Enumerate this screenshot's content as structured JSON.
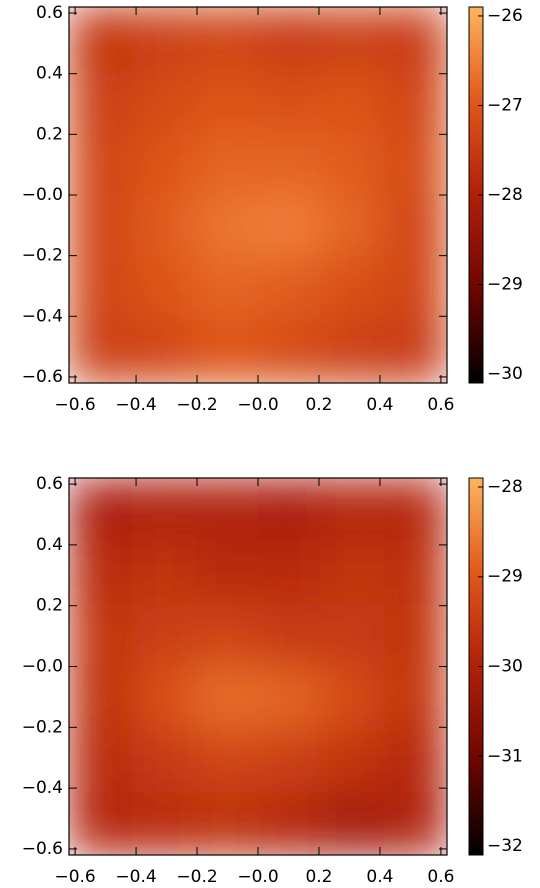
{
  "chart_data": [
    {
      "type": "heatmap",
      "xlim": [
        -0.62,
        0.62
      ],
      "ylim": [
        -0.62,
        0.62
      ],
      "xticks": [
        {
          "value": -0.6,
          "label": "−0.6"
        },
        {
          "value": -0.4,
          "label": "−0.4"
        },
        {
          "value": -0.2,
          "label": "−0.2"
        },
        {
          "value": 0,
          "label": "−0.0"
        },
        0.2,
        0.4,
        0.6
      ],
      "yticks": [
        {
          "value": -0.6,
          "label": "−0.6"
        },
        {
          "value": -0.4,
          "label": "−0.4"
        },
        {
          "value": -0.2,
          "label": "−0.2"
        },
        {
          "value": 0,
          "label": "−0.0"
        },
        0.2,
        0.4,
        0.6
      ],
      "clim": [
        -30.1,
        -25.9
      ],
      "cticks": [
        {
          "value": -30,
          "label": "−30"
        },
        {
          "value": -29,
          "label": "−29"
        },
        {
          "value": -28,
          "label": "−28"
        },
        {
          "value": -27,
          "label": "−27"
        },
        {
          "value": -26,
          "label": "−26"
        }
      ],
      "colormap": [
        "#000000",
        "#6e0500",
        "#b0200a",
        "#e0581a",
        "#ffb45e"
      ],
      "z": [
        [
          -27.6,
          -27.4,
          -27.3,
          -27.5,
          -27.4,
          -27.5
        ],
        [
          -27.4,
          -27.2,
          -27.0,
          -27.1,
          -27.0,
          -27.3
        ],
        [
          -27.3,
          -27.0,
          -26.8,
          -26.8,
          -26.9,
          -27.2
        ],
        [
          -27.3,
          -26.9,
          -26.6,
          -26.5,
          -26.8,
          -27.3
        ],
        [
          -27.3,
          -27.0,
          -26.8,
          -26.9,
          -27.1,
          -27.3
        ],
        [
          -27.4,
          -27.3,
          -27.0,
          -27.2,
          -27.4,
          -27.5
        ]
      ]
    },
    {
      "type": "heatmap",
      "xlim": [
        -0.62,
        0.62
      ],
      "ylim": [
        -0.62,
        0.62
      ],
      "xticks": [
        {
          "value": -0.6,
          "label": "−0.6"
        },
        {
          "value": -0.4,
          "label": "−0.4"
        },
        {
          "value": -0.2,
          "label": "−0.2"
        },
        {
          "value": 0,
          "label": "−0.0"
        },
        0.2,
        0.4,
        0.6
      ],
      "yticks": [
        {
          "value": -0.6,
          "label": "−0.6"
        },
        {
          "value": -0.4,
          "label": "−0.4"
        },
        {
          "value": -0.2,
          "label": "−0.2"
        },
        {
          "value": 0,
          "label": "−0.0"
        },
        0.2,
        0.4,
        0.6
      ],
      "clim": [
        -32.1,
        -27.9
      ],
      "cticks": [
        {
          "value": -32,
          "label": "−32"
        },
        {
          "value": -31,
          "label": "−31"
        },
        {
          "value": -30,
          "label": "−30"
        },
        {
          "value": -29,
          "label": "−29"
        },
        {
          "value": -28,
          "label": "−28"
        }
      ],
      "colormap": [
        "#000000",
        "#6e0500",
        "#b0200a",
        "#e0581a",
        "#ffb45e"
      ],
      "z": [
        [
          -30.1,
          -30.0,
          -30.0,
          -30.1,
          -29.9,
          -29.9
        ],
        [
          -29.8,
          -29.6,
          -29.8,
          -29.8,
          -29.6,
          -29.7
        ],
        [
          -29.6,
          -29.4,
          -29.3,
          -29.5,
          -29.5,
          -29.6
        ],
        [
          -29.7,
          -29.1,
          -28.7,
          -28.8,
          -29.2,
          -29.6
        ],
        [
          -29.8,
          -29.5,
          -29.3,
          -29.4,
          -29.6,
          -29.9
        ],
        [
          -29.9,
          -29.8,
          -29.7,
          -29.9,
          -30.2,
          -30.0
        ]
      ]
    }
  ]
}
